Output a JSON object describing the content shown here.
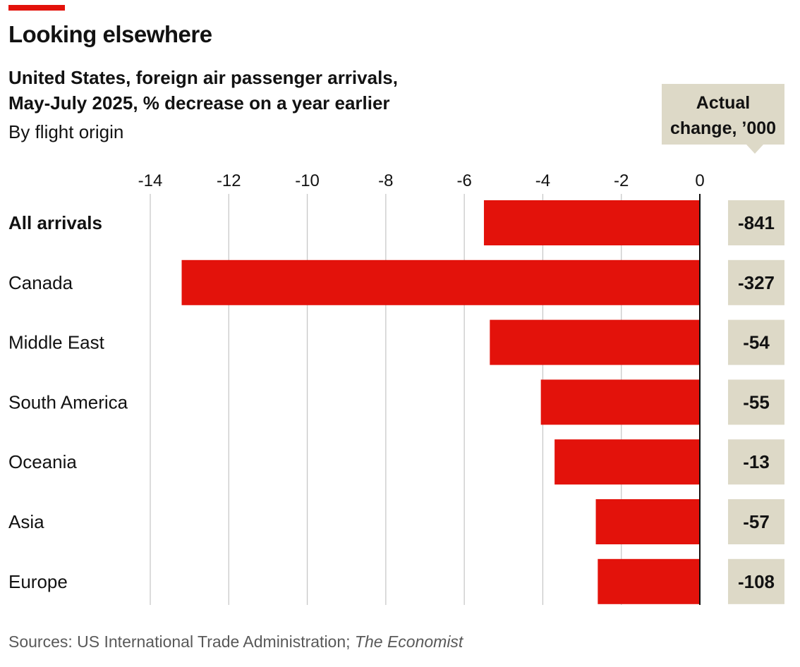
{
  "accent_color": "#E3120B",
  "title": "Looking elsewhere",
  "subtitle_lines": [
    "United States, foreign air passenger arrivals,",
    "May-July 2025, % decrease on a year earlier"
  ],
  "byline": "By flight origin",
  "source": {
    "text": "Sources: US International Trade Administration; ",
    "publication": "The Economist"
  },
  "chart_data": {
    "type": "bar",
    "orientation": "horizontal",
    "categories": [
      "All arrivals",
      "Canada",
      "Middle East",
      "South America",
      "Oceania",
      "Asia",
      "Europe"
    ],
    "values": [
      -5.5,
      -13.2,
      -5.35,
      -4.05,
      -3.7,
      -2.65,
      -2.6
    ],
    "xlim": [
      -14,
      0
    ],
    "xticks": [
      -14,
      -12,
      -10,
      -8,
      -6,
      -4,
      -2,
      0
    ],
    "grid": true,
    "bar_color": "#E3120B",
    "side_column": {
      "header_lines": [
        "Actual",
        "change, ’000"
      ],
      "values": [
        "-841",
        "-327",
        "-54",
        "-55",
        "-13",
        "-57",
        "-108"
      ],
      "box_color": "#DDD9C7"
    }
  }
}
